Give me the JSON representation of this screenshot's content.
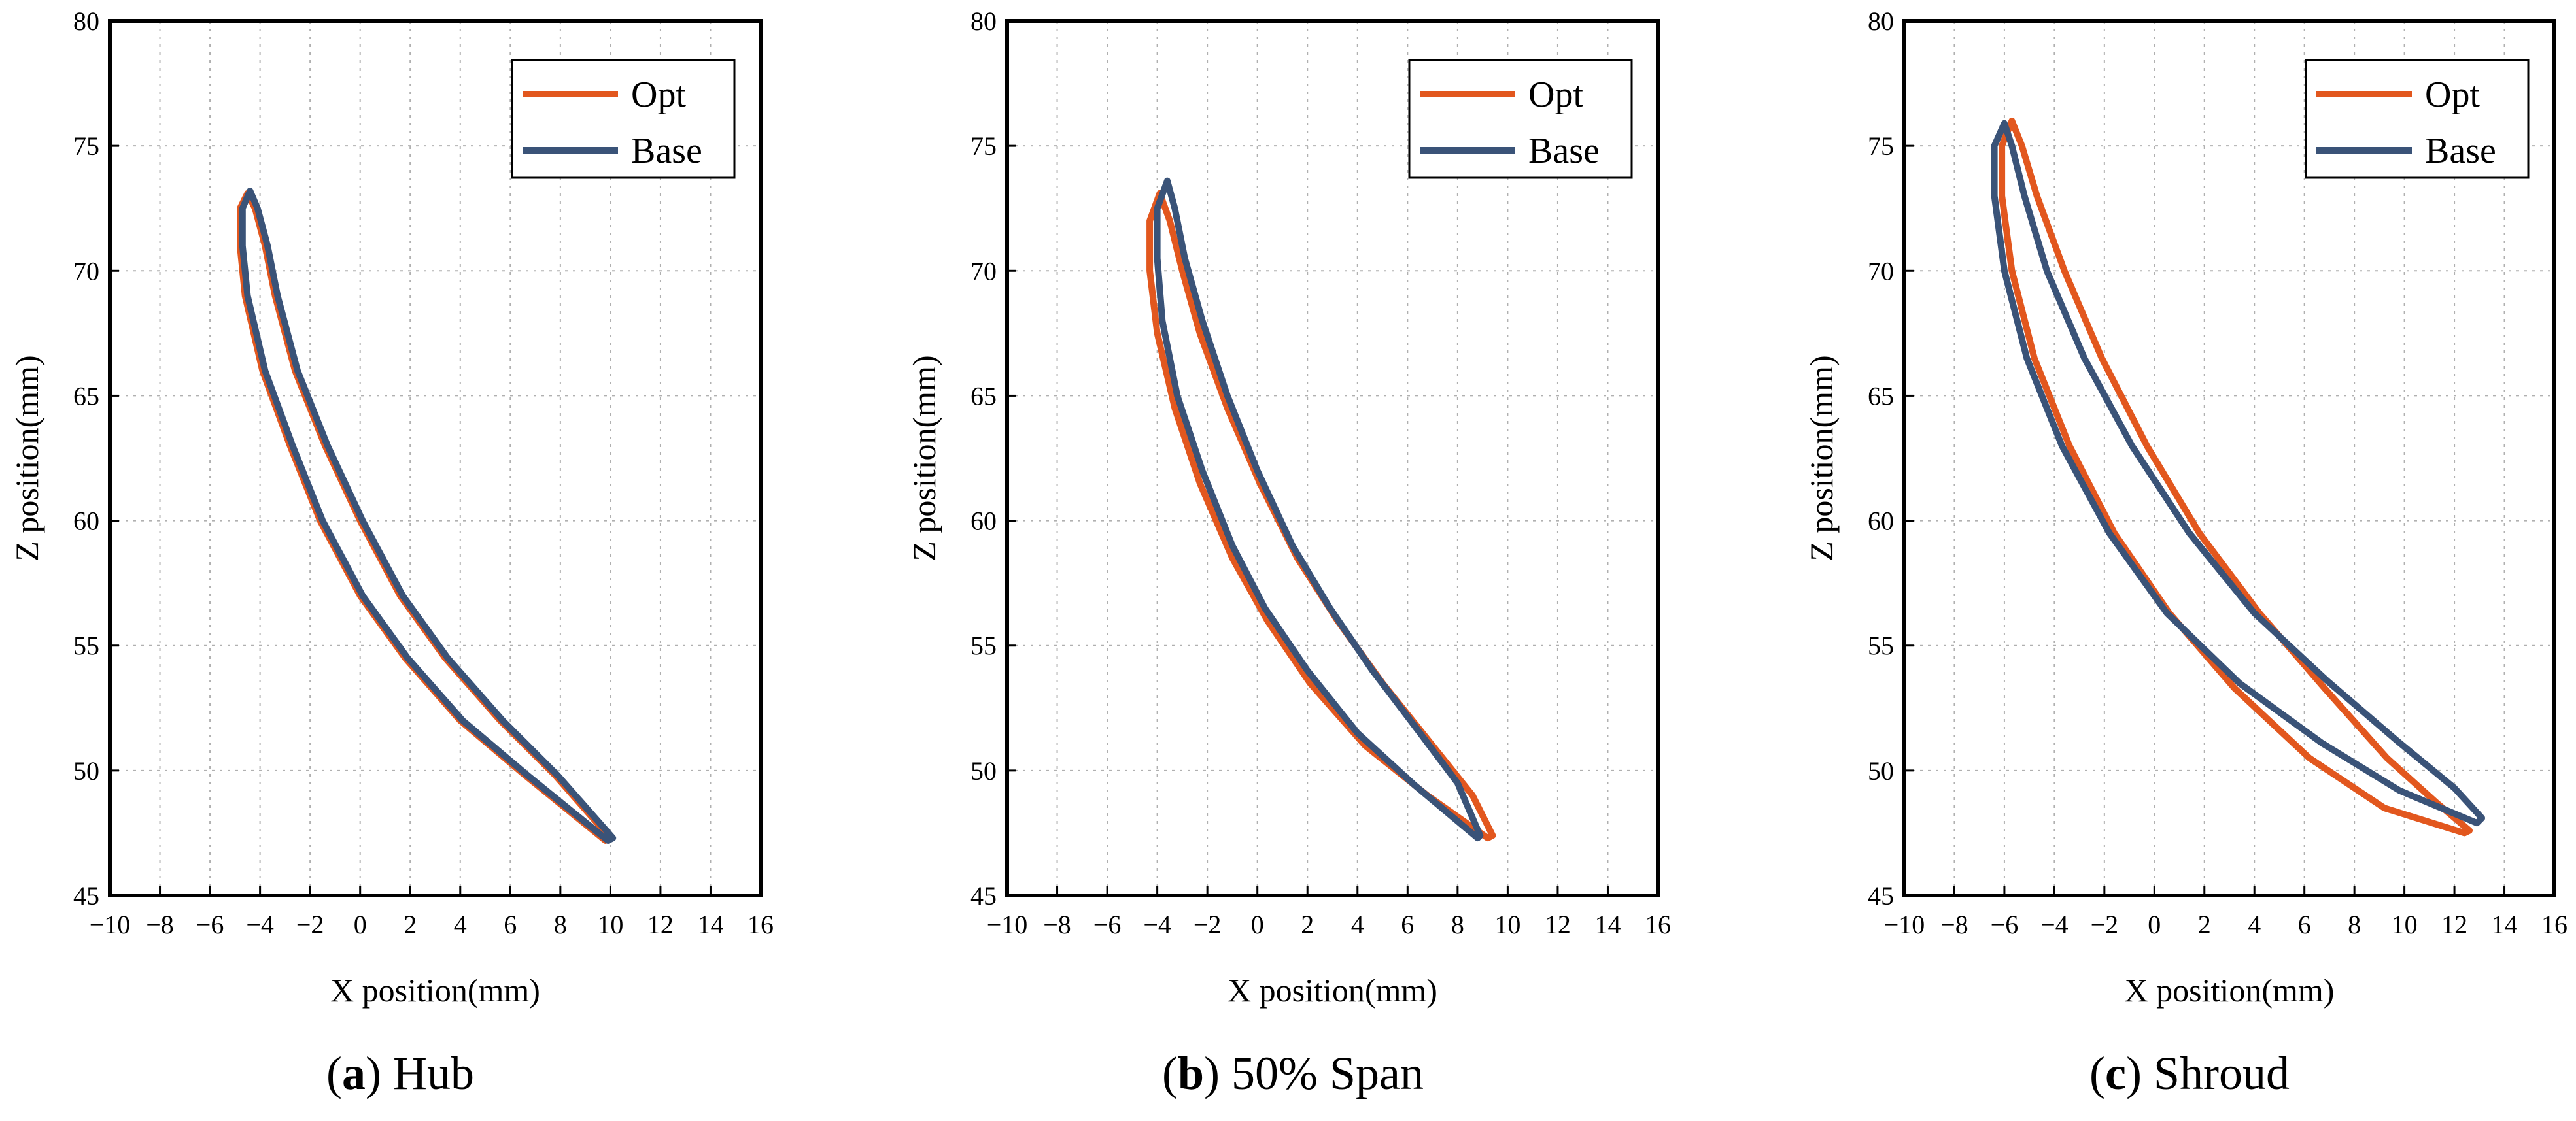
{
  "colors": {
    "opt": "#e2571e",
    "base": "#3a5378",
    "axis": "#000000",
    "grid": "#b0b0b0"
  },
  "chart_data": [
    {
      "type": "line",
      "caption_letter": "a",
      "caption_text": " Hub",
      "xlabel": "X position(mm)",
      "ylabel": "Z position(mm)",
      "xlim": [
        -10,
        16
      ],
      "ylim": [
        45,
        80
      ],
      "xticks": [
        -10,
        -8,
        -6,
        -4,
        -2,
        0,
        2,
        4,
        6,
        8,
        10,
        12,
        14,
        16
      ],
      "yticks": [
        45,
        50,
        55,
        60,
        65,
        70,
        75,
        80
      ],
      "grid": true,
      "legend_position": "top-right",
      "series": [
        {
          "name": "Opt",
          "upper": [
            [
              -4.5,
              73.1
            ],
            [
              -4.2,
              72.5
            ],
            [
              -3.8,
              71.0
            ],
            [
              -3.4,
              69.0
            ],
            [
              -2.6,
              66.0
            ],
            [
              -1.4,
              63.0
            ],
            [
              0,
              60.0
            ],
            [
              1.6,
              57.0
            ],
            [
              3.4,
              54.5
            ],
            [
              5.6,
              52.0
            ],
            [
              7.8,
              49.8
            ],
            [
              10.0,
              47.3
            ]
          ],
          "lower": [
            [
              -4.5,
              73.1
            ],
            [
              -4.8,
              72.5
            ],
            [
              -4.8,
              71.0
            ],
            [
              -4.6,
              69.0
            ],
            [
              -3.9,
              66.0
            ],
            [
              -2.8,
              63.0
            ],
            [
              -1.6,
              60.0
            ],
            [
              0,
              57.0
            ],
            [
              1.8,
              54.5
            ],
            [
              4.0,
              52.0
            ],
            [
              6.6,
              49.8
            ],
            [
              9.8,
              47.2
            ]
          ]
        },
        {
          "name": "Base",
          "upper": [
            [
              -4.4,
              73.2
            ],
            [
              -4.1,
              72.5
            ],
            [
              -3.7,
              71.0
            ],
            [
              -3.3,
              69.0
            ],
            [
              -2.5,
              66.0
            ],
            [
              -1.3,
              63.0
            ],
            [
              0.1,
              60.0
            ],
            [
              1.7,
              57.0
            ],
            [
              3.5,
              54.5
            ],
            [
              5.7,
              52.0
            ],
            [
              7.9,
              49.8
            ],
            [
              10.1,
              47.3
            ]
          ],
          "lower": [
            [
              -4.4,
              73.2
            ],
            [
              -4.7,
              72.5
            ],
            [
              -4.7,
              71.0
            ],
            [
              -4.5,
              69.0
            ],
            [
              -3.8,
              66.0
            ],
            [
              -2.7,
              63.0
            ],
            [
              -1.5,
              60.0
            ],
            [
              0.1,
              57.0
            ],
            [
              1.9,
              54.5
            ],
            [
              4.1,
              52.0
            ],
            [
              6.7,
              49.8
            ],
            [
              9.9,
              47.2
            ]
          ]
        }
      ]
    },
    {
      "type": "line",
      "caption_letter": "b",
      "caption_text": " 50% Span",
      "xlabel": "X position(mm)",
      "ylabel": "Z position(mm)",
      "xlim": [
        -10,
        16
      ],
      "ylim": [
        45,
        80
      ],
      "xticks": [
        -10,
        -8,
        -6,
        -4,
        -2,
        0,
        2,
        4,
        6,
        8,
        10,
        12,
        14,
        16
      ],
      "yticks": [
        45,
        50,
        55,
        60,
        65,
        70,
        75,
        80
      ],
      "grid": true,
      "legend_position": "top-right",
      "series": [
        {
          "name": "Opt",
          "upper": [
            [
              -3.9,
              73.1
            ],
            [
              -3.5,
              72.0
            ],
            [
              -3.0,
              70.0
            ],
            [
              -2.3,
              67.5
            ],
            [
              -1.2,
              64.5
            ],
            [
              0.1,
              61.5
            ],
            [
              1.6,
              58.5
            ],
            [
              3.2,
              56.0
            ],
            [
              5.0,
              53.5
            ],
            [
              7.0,
              51.0
            ],
            [
              8.6,
              49.0
            ],
            [
              9.4,
              47.4
            ]
          ],
          "lower": [
            [
              -3.9,
              73.1
            ],
            [
              -4.3,
              72.0
            ],
            [
              -4.3,
              70.0
            ],
            [
              -4.0,
              67.5
            ],
            [
              -3.3,
              64.5
            ],
            [
              -2.3,
              61.5
            ],
            [
              -1.0,
              58.5
            ],
            [
              0.4,
              56.0
            ],
            [
              2.1,
              53.5
            ],
            [
              4.3,
              51.0
            ],
            [
              6.8,
              49.0
            ],
            [
              9.2,
              47.3
            ]
          ]
        },
        {
          "name": "Base",
          "upper": [
            [
              -3.6,
              73.6
            ],
            [
              -3.3,
              72.5
            ],
            [
              -2.9,
              70.5
            ],
            [
              -2.2,
              68.0
            ],
            [
              -1.2,
              65.0
            ],
            [
              0,
              62.0
            ],
            [
              1.4,
              59.0
            ],
            [
              2.9,
              56.5
            ],
            [
              4.6,
              54.0
            ],
            [
              6.5,
              51.5
            ],
            [
              8.0,
              49.5
            ],
            [
              8.9,
              47.4
            ]
          ],
          "lower": [
            [
              -3.6,
              73.6
            ],
            [
              -4.0,
              72.5
            ],
            [
              -4.0,
              70.5
            ],
            [
              -3.8,
              68.0
            ],
            [
              -3.2,
              65.0
            ],
            [
              -2.2,
              62.0
            ],
            [
              -1.0,
              59.0
            ],
            [
              0.3,
              56.5
            ],
            [
              2.0,
              54.0
            ],
            [
              4.0,
              51.5
            ],
            [
              6.3,
              49.4
            ],
            [
              8.8,
              47.3
            ]
          ]
        }
      ]
    },
    {
      "type": "line",
      "caption_letter": "c",
      "caption_text": " Shroud",
      "xlabel": "X position(mm)",
      "ylabel": "Z position(mm)",
      "xlim": [
        -10,
        16
      ],
      "ylim": [
        45,
        80
      ],
      "xticks": [
        -10,
        -8,
        -6,
        -4,
        -2,
        0,
        2,
        4,
        6,
        8,
        10,
        12,
        14,
        16
      ],
      "yticks": [
        45,
        50,
        55,
        60,
        65,
        70,
        75,
        80
      ],
      "grid": true,
      "legend_position": "top-right",
      "series": [
        {
          "name": "Opt",
          "upper": [
            [
              -5.7,
              76.0
            ],
            [
              -5.3,
              75.0
            ],
            [
              -4.7,
              73.0
            ],
            [
              -3.6,
              70.0
            ],
            [
              -2.1,
              66.5
            ],
            [
              -0.3,
              63.0
            ],
            [
              1.8,
              59.5
            ],
            [
              4.2,
              56.3
            ],
            [
              6.8,
              53.3
            ],
            [
              9.3,
              50.5
            ],
            [
              11.3,
              48.7
            ],
            [
              12.6,
              47.6
            ]
          ],
          "lower": [
            [
              -5.7,
              76.0
            ],
            [
              -6.1,
              75.0
            ],
            [
              -6.1,
              73.0
            ],
            [
              -5.7,
              70.0
            ],
            [
              -4.8,
              66.5
            ],
            [
              -3.4,
              63.0
            ],
            [
              -1.6,
              59.5
            ],
            [
              0.6,
              56.3
            ],
            [
              3.2,
              53.3
            ],
            [
              6.2,
              50.5
            ],
            [
              9.2,
              48.5
            ],
            [
              12.4,
              47.5
            ]
          ]
        },
        {
          "name": "Base",
          "upper": [
            [
              -6.0,
              75.9
            ],
            [
              -5.7,
              75.0
            ],
            [
              -5.2,
              73.0
            ],
            [
              -4.3,
              70.0
            ],
            [
              -2.8,
              66.5
            ],
            [
              -0.9,
              63.0
            ],
            [
              1.4,
              59.5
            ],
            [
              4.0,
              56.3
            ],
            [
              6.9,
              53.6
            ],
            [
              9.7,
              51.2
            ],
            [
              12.0,
              49.3
            ],
            [
              13.1,
              48.1
            ]
          ],
          "lower": [
            [
              -6.0,
              75.9
            ],
            [
              -6.4,
              75.0
            ],
            [
              -6.4,
              73.0
            ],
            [
              -6.0,
              70.0
            ],
            [
              -5.1,
              66.5
            ],
            [
              -3.7,
              63.0
            ],
            [
              -1.8,
              59.5
            ],
            [
              0.5,
              56.3
            ],
            [
              3.4,
              53.5
            ],
            [
              6.7,
              51.1
            ],
            [
              9.8,
              49.2
            ],
            [
              12.9,
              47.9
            ]
          ]
        }
      ]
    }
  ]
}
